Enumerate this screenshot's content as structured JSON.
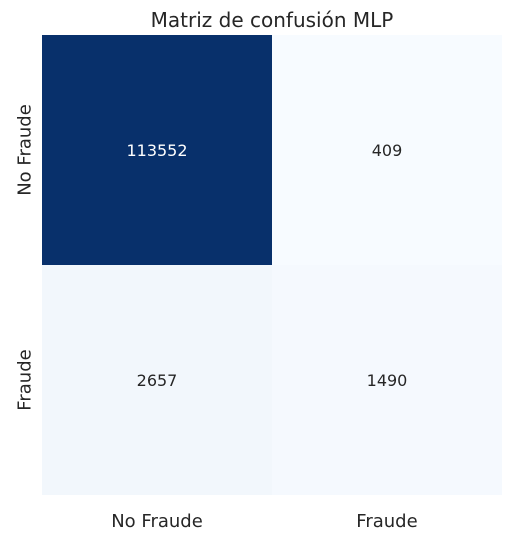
{
  "chart_data": {
    "type": "heatmap",
    "title": "Matriz de confusión MLP",
    "xlabel": "",
    "ylabel": "",
    "x_categories": [
      "No Fraude",
      "Fraude"
    ],
    "y_categories": [
      "No Fraude",
      "Fraude"
    ],
    "values": [
      [
        113552,
        409
      ],
      [
        2657,
        1490
      ]
    ],
    "value_labels": [
      [
        "113552",
        "409"
      ],
      [
        "2657",
        "1490"
      ]
    ],
    "colormap": "Blues",
    "color_low": "#f7fbff",
    "color_high": "#08306b",
    "colorbar": false,
    "grid": false
  }
}
